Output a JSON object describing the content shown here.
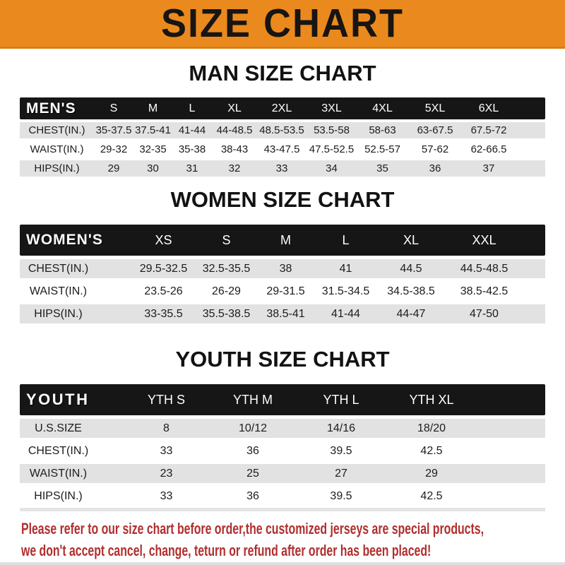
{
  "banner": {
    "title": "SIZE CHART"
  },
  "chart_data": [
    {
      "type": "table",
      "title": "MAN SIZE CHART",
      "corner": "MEN'S",
      "columns": [
        "S",
        "M",
        "L",
        "XL",
        "2XL",
        "3XL",
        "4XL",
        "5XL",
        "6XL"
      ],
      "rows": [
        {
          "label": "CHEST(IN.)",
          "values": [
            "35-37.5",
            "37.5-41",
            "41-44",
            "44-48.5",
            "48.5-53.5",
            "53.5-58",
            "58-63",
            "63-67.5",
            "67.5-72"
          ]
        },
        {
          "label": "WAIST(IN.)",
          "values": [
            "29-32",
            "32-35",
            "35-38",
            "38-43",
            "43-47.5",
            "47.5-52.5",
            "52.5-57",
            "57-62",
            "62-66.5"
          ]
        },
        {
          "label": "HIPS(IN.)",
          "values": [
            "29",
            "30",
            "31",
            "32",
            "33",
            "34",
            "35",
            "36",
            "37"
          ]
        }
      ]
    },
    {
      "type": "table",
      "title": "WOMEN SIZE CHART",
      "corner": "WOMEN'S",
      "columns": [
        "XS",
        "S",
        "M",
        "L",
        "XL",
        "XXL"
      ],
      "rows": [
        {
          "label": "CHEST(IN.)",
          "values": [
            "29.5-32.5",
            "32.5-35.5",
            "38",
            "41",
            "44.5",
            "44.5-48.5"
          ]
        },
        {
          "label": "WAIST(IN.)",
          "values": [
            "23.5-26",
            "26-29",
            "29-31.5",
            "31.5-34.5",
            "34.5-38.5",
            "38.5-42.5"
          ]
        },
        {
          "label": "HIPS(IN.)",
          "values": [
            "33-35.5",
            "35.5-38.5",
            "38.5-41",
            "41-44",
            "44-47",
            "47-50"
          ]
        }
      ]
    },
    {
      "type": "table",
      "title": "YOUTH SIZE CHART",
      "corner": "YOUTH",
      "columns": [
        "YTH S",
        "YTH M",
        "YTH L",
        "YTH XL"
      ],
      "rows": [
        {
          "label": "U.S.SIZE",
          "values": [
            "8",
            "10/12",
            "14/16",
            "18/20"
          ]
        },
        {
          "label": "CHEST(IN.)",
          "values": [
            "33",
            "36",
            "39.5",
            "42.5"
          ]
        },
        {
          "label": "WAIST(IN.)",
          "values": [
            "23",
            "25",
            "27",
            "29"
          ]
        },
        {
          "label": "HIPS(IN.)",
          "values": [
            "33",
            "36",
            "39.5",
            "42.5"
          ]
        }
      ]
    }
  ],
  "footer": {
    "line1": "Please refer to our size chart before order,the customized jerseys are special products,",
    "line2": "we don't accept cancel, change, teturn or refund after order has been placed!"
  },
  "colors": {
    "banner_orange": "#EA8A1E",
    "table_header_black": "#161616",
    "row_gray": "#E2E2E2",
    "note_red": "#B12E2E"
  }
}
